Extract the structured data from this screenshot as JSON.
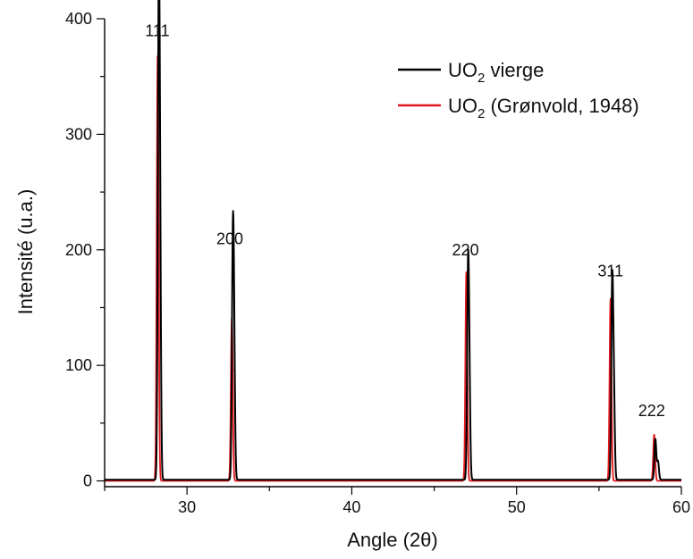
{
  "chart_data": {
    "type": "line",
    "xlabel": "Angle (2θ)",
    "ylabel": "Intensité (u.a.)",
    "xlim": [
      25,
      60
    ],
    "ylim": [
      -5,
      400
    ],
    "xticks": [
      30,
      40,
      50,
      60
    ],
    "yticks": [
      0,
      100,
      200,
      300,
      400
    ],
    "xtick_labels": [
      "30",
      "40",
      "50",
      "60"
    ],
    "ytick_labels": [
      "0",
      "100",
      "200",
      "300",
      "400"
    ],
    "grid": false,
    "legend_position": "top-right",
    "legend": [
      {
        "base": "UO",
        "sub": "2",
        "rest": " vierge",
        "color": "#000000"
      },
      {
        "base": "UO",
        "sub": "2",
        "rest": " (Grønvold, 1948)",
        "color": "#e3161b"
      }
    ],
    "series": [
      {
        "color": "#000000",
        "baseline": 1,
        "peaks": [
          {
            "x": 28.28,
            "y": 372
          },
          {
            "x": 28.36,
            "y": 188
          },
          {
            "x": 32.78,
            "y": 191
          },
          {
            "x": 32.86,
            "y": 96
          },
          {
            "x": 47.05,
            "y": 165
          },
          {
            "x": 47.13,
            "y": 80
          },
          {
            "x": 55.8,
            "y": 164
          },
          {
            "x": 55.9,
            "y": 76
          },
          {
            "x": 58.42,
            "y": 36
          },
          {
            "x": 58.58,
            "y": 17
          }
        ]
      },
      {
        "color": "#e3161b",
        "baseline": 0,
        "peaks": [
          {
            "x": 28.22,
            "y": 370
          },
          {
            "x": 32.72,
            "y": 141
          },
          {
            "x": 46.95,
            "y": 181
          },
          {
            "x": 55.7,
            "y": 158
          },
          {
            "x": 58.35,
            "y": 40
          }
        ]
      }
    ],
    "annotations": [
      {
        "text": "111",
        "x": 28.2,
        "y": 385
      },
      {
        "text": "200",
        "x": 32.6,
        "y": 205
      },
      {
        "text": "220",
        "x": 46.9,
        "y": 195
      },
      {
        "text": "311",
        "x": 55.7,
        "y": 177
      },
      {
        "text": "222",
        "x": 58.2,
        "y": 56
      }
    ]
  }
}
